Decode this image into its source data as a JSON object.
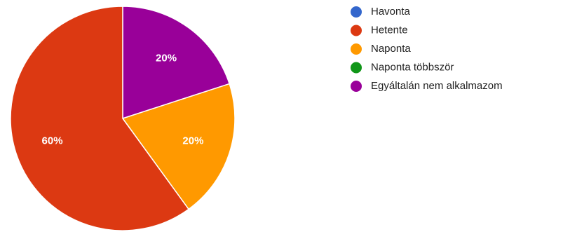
{
  "chart_data": {
    "type": "pie",
    "categories": [
      "Havonta",
      "Hetente",
      "Naponta",
      "Naponta többször",
      "Egyáltalán nem alkalmazom"
    ],
    "values": [
      0,
      60,
      20,
      0,
      20
    ],
    "colors": [
      "#3366cc",
      "#dc3912",
      "#ff9900",
      "#109618",
      "#990099"
    ],
    "data_labels": [
      "",
      "60%",
      "20%",
      "",
      "20%"
    ],
    "legend_position": "right"
  }
}
